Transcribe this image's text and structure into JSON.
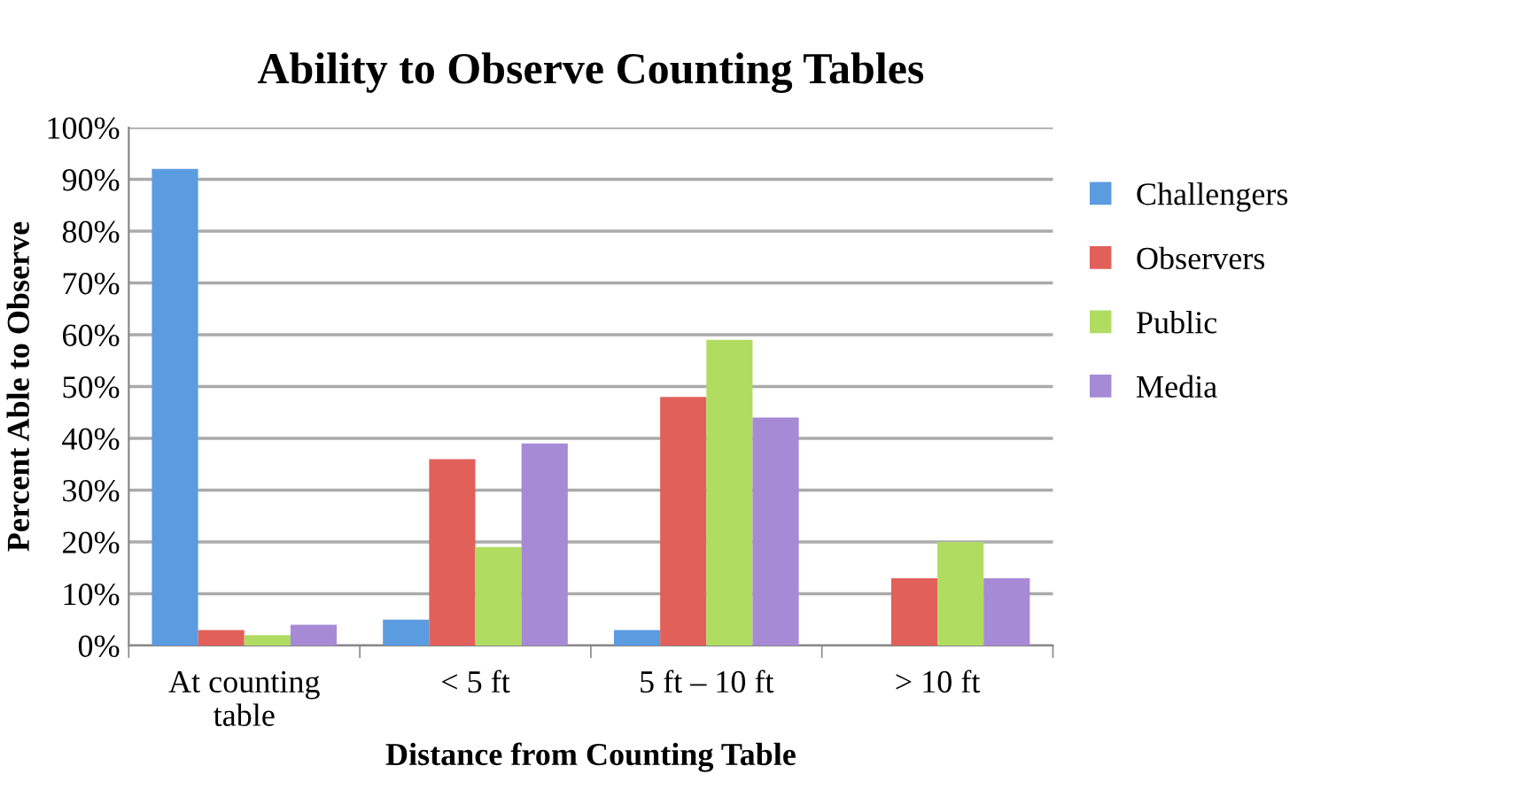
{
  "chart_data": {
    "type": "bar",
    "title": "Ability to Observe Counting Tables",
    "xlabel": "Distance from Counting Table",
    "ylabel": "Percent Able to Observe",
    "categories": [
      "At counting\ntable",
      "< 5 ft",
      "5 ft – 10 ft",
      "> 10 ft"
    ],
    "series": [
      {
        "name": "Challengers",
        "color": "#5b9be0",
        "values": [
          92,
          5,
          3,
          0
        ]
      },
      {
        "name": "Observers",
        "color": "#e2605a",
        "values": [
          3,
          36,
          48,
          13
        ]
      },
      {
        "name": "Public",
        "color": "#b0dc62",
        "values": [
          2,
          19,
          59,
          20
        ]
      },
      {
        "name": "Media",
        "color": "#a68ad6",
        "values": [
          4,
          39,
          44,
          13
        ]
      }
    ],
    "ylim": [
      0,
      100
    ],
    "yticks": [
      {
        "value": 0,
        "label": "0%"
      },
      {
        "value": 10,
        "label": "10%"
      },
      {
        "value": 20,
        "label": "20%"
      },
      {
        "value": 30,
        "label": "30%"
      },
      {
        "value": 40,
        "label": "40%"
      },
      {
        "value": 50,
        "label": "50%"
      },
      {
        "value": 60,
        "label": "60%"
      },
      {
        "value": 70,
        "label": "70%"
      },
      {
        "value": 80,
        "label": "80%"
      },
      {
        "value": 90,
        "label": "90%"
      },
      {
        "value": 100,
        "label": "100%"
      }
    ],
    "grid": "y",
    "legend": "right"
  }
}
